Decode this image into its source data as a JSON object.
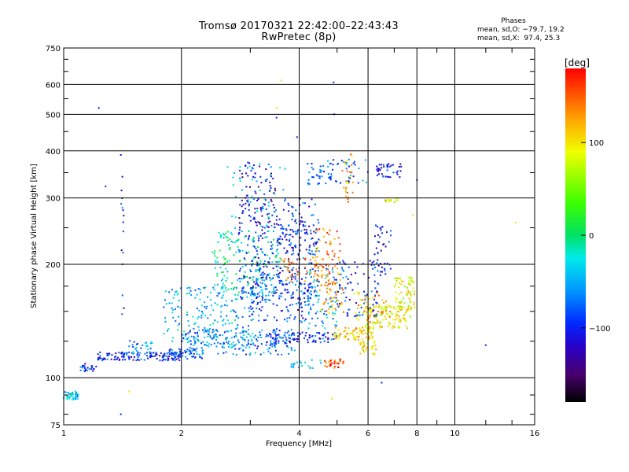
{
  "chart_data": {
    "type": "scatter",
    "title": "Tromsø 20170321 22:42:00–22:43:43",
    "subtitle": "RwPretec (8p)",
    "xlabel": "Frequency [MHz]",
    "ylabel": "Stationary phase Virtual Height [km]",
    "x_scale": "log",
    "y_scale": "log",
    "xlim": [
      1,
      16
    ],
    "ylim": [
      75,
      750
    ],
    "x_ticks": [
      "1",
      "2",
      "4",
      "6",
      "8",
      "10",
      "16"
    ],
    "y_ticks": [
      "75",
      "100",
      "200",
      "300",
      "400",
      "500",
      "600",
      "750"
    ],
    "grid": true,
    "phase_stats": {
      "heading": "Phases",
      "line_o": "mean, sd,O: −79.7, 19.2",
      "line_x": "mean, sd,X:  97.4, 25.3"
    },
    "colorbar": {
      "label": "[deg]",
      "range": [
        -180,
        180
      ],
      "ticks": [
        "100",
        "0",
        "−100"
      ],
      "tick_values": [
        100,
        0,
        -100
      ]
    },
    "clusters": [
      {
        "f": [
          1.0,
          1.09
        ],
        "h": [
          87,
          92
        ],
        "deg": -40,
        "n": 45
      },
      {
        "f": [
          1.09,
          1.22
        ],
        "h": [
          104,
          109
        ],
        "deg": -95,
        "n": 25
      },
      {
        "f": [
          1.22,
          2.0
        ],
        "h": [
          111,
          117
        ],
        "deg": -100,
        "n": 140
      },
      {
        "f": [
          1.45,
          1.7
        ],
        "h": [
          116,
          126
        ],
        "deg": -60,
        "n": 30
      },
      {
        "f": [
          1.85,
          2.3
        ],
        "h": [
          112,
          120
        ],
        "deg": -80,
        "n": 50
      },
      {
        "f": [
          2.0,
          3.9
        ],
        "h": [
          115,
          135
        ],
        "deg": -70,
        "n": 180
      },
      {
        "f": [
          3.3,
          5.0
        ],
        "h": [
          124,
          132
        ],
        "deg": -95,
        "n": 90
      },
      {
        "f": [
          4.9,
          6.2
        ],
        "h": [
          126,
          136
        ],
        "deg": 110,
        "n": 80
      },
      {
        "f": [
          5.9,
          7.7
        ],
        "h": [
          135,
          155
        ],
        "deg": 95,
        "n": 110
      },
      {
        "f": [
          7.0,
          7.9
        ],
        "h": [
          150,
          185
        ],
        "deg": 85,
        "n": 70
      },
      {
        "f": [
          1.8,
          3.1
        ],
        "h": [
          120,
          175
        ],
        "deg": -45,
        "n": 220
      },
      {
        "f": [
          2.4,
          3.6
        ],
        "h": [
          165,
          245
        ],
        "deg": -20,
        "n": 170
      },
      {
        "f": [
          2.8,
          4.4
        ],
        "h": [
          160,
          300
        ],
        "deg": -95,
        "n": 230
      },
      {
        "f": [
          2.8,
          3.5
        ],
        "h": [
          250,
          375
        ],
        "deg": -120,
        "n": 80
      },
      {
        "f": [
          3.5,
          4.5
        ],
        "h": [
          210,
          265
        ],
        "deg": -100,
        "n": 80
      },
      {
        "f": [
          3.0,
          4.3
        ],
        "h": [
          140,
          200
        ],
        "deg": -90,
        "n": 150
      },
      {
        "f": [
          4.2,
          5.0
        ],
        "h": [
          135,
          195
        ],
        "deg": -55,
        "n": 90
      },
      {
        "f": [
          4.4,
          5.1
        ],
        "h": [
          175,
          250
        ],
        "deg": 140,
        "n": 70
      },
      {
        "f": [
          4.5,
          5.2
        ],
        "h": [
          145,
          180
        ],
        "deg": 120,
        "n": 50
      },
      {
        "f": [
          5.0,
          6.4
        ],
        "h": [
          145,
          205
        ],
        "deg": -90,
        "n": 90
      },
      {
        "f": [
          5.5,
          6.8
        ],
        "h": [
          140,
          170
        ],
        "deg": 110,
        "n": 60
      },
      {
        "f": [
          5.7,
          6.3
        ],
        "h": [
          115,
          125
        ],
        "deg": 95,
        "n": 30
      },
      {
        "f": [
          4.6,
          5.2
        ],
        "h": [
          106,
          112
        ],
        "deg": 160,
        "n": 30
      },
      {
        "f": [
          3.8,
          4.6
        ],
        "h": [
          106,
          114
        ],
        "deg": -40,
        "n": 20
      },
      {
        "f": [
          6.2,
          6.9
        ],
        "h": [
          185,
          260
        ],
        "deg": -100,
        "n": 40
      },
      {
        "f": [
          4.2,
          6.0
        ],
        "h": [
          325,
          380
        ],
        "deg": -75,
        "n": 75
      },
      {
        "f": [
          5.1,
          5.5
        ],
        "h": [
          290,
          395
        ],
        "deg": 120,
        "n": 25
      },
      {
        "f": [
          6.3,
          7.3
        ],
        "h": [
          340,
          370
        ],
        "deg": -110,
        "n": 40
      },
      {
        "f": [
          6.6,
          7.2
        ],
        "h": [
          292,
          300
        ],
        "deg": 95,
        "n": 15
      },
      {
        "f": [
          3.6,
          4.6
        ],
        "h": [
          180,
          210
        ],
        "deg": 135,
        "n": 50
      },
      {
        "f": [
          1.4,
          1.43
        ],
        "h": [
          145,
          360
        ],
        "deg": -100,
        "n": 15
      },
      {
        "f": [
          2.6,
          3.7
        ],
        "h": [
          230,
          370
        ],
        "deg": -40,
        "n": 50
      }
    ],
    "sparse_points": [
      {
        "f": 1.23,
        "h": 520,
        "deg": -100
      },
      {
        "f": 1.28,
        "h": 322,
        "deg": -100
      },
      {
        "f": 1.4,
        "h": 390,
        "deg": -100
      },
      {
        "f": 1.4,
        "h": 80,
        "deg": -100
      },
      {
        "f": 1.47,
        "h": 92,
        "deg": 100
      },
      {
        "f": 3.6,
        "h": 615,
        "deg": 100
      },
      {
        "f": 3.5,
        "h": 520,
        "deg": 100
      },
      {
        "f": 4.9,
        "h": 608,
        "deg": -100
      },
      {
        "f": 4.92,
        "h": 500,
        "deg": -100
      },
      {
        "f": 3.5,
        "h": 490,
        "deg": -100
      },
      {
        "f": 3.95,
        "h": 435,
        "deg": -100
      },
      {
        "f": 4.85,
        "h": 88,
        "deg": 100
      },
      {
        "f": 6.5,
        "h": 97,
        "deg": -100
      },
      {
        "f": 12.0,
        "h": 122,
        "deg": -100
      },
      {
        "f": 14.3,
        "h": 258,
        "deg": 100
      },
      {
        "f": 8.0,
        "h": 335,
        "deg": -100
      },
      {
        "f": 7.8,
        "h": 270,
        "deg": 100
      }
    ]
  }
}
